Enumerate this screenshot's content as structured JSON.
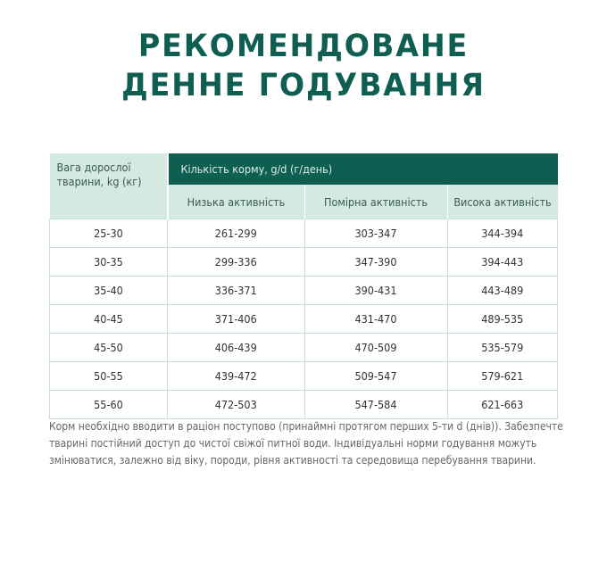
{
  "title": {
    "line1": "РЕКОМЕНДОВАНЕ",
    "line2": "ДЕННЕ ГОДУВАННЯ"
  },
  "table": {
    "weight_header": "Вага дорослої тварини, kg (кг)",
    "group_header": "Кількість корму, g/d (г/день)",
    "columns": [
      "Низька активність",
      "Помірна активність",
      "Висока активність"
    ],
    "rows": [
      [
        "25-30",
        "261-299",
        "303-347",
        "344-394"
      ],
      [
        "30-35",
        "299-336",
        "347-390",
        "394-443"
      ],
      [
        "35-40",
        "336-371",
        "390-431",
        "443-489"
      ],
      [
        "40-45",
        "371-406",
        "431-470",
        "489-535"
      ],
      [
        "45-50",
        "406-439",
        "470-509",
        "535-579"
      ],
      [
        "50-55",
        "439-472",
        "509-547",
        "579-621"
      ],
      [
        "55-60",
        "472-503",
        "547-584",
        "621-663"
      ]
    ]
  },
  "note": "Корм необхідно вводити в раціон поступово (принаймні протягом перших 5-ти d (днів)). Забезпечте тварині постійний доступ до чистої свіжої питної води. Індивідуальні норми годування можуть змінюватися, залежно від віку, породи, рівня активності та середовища перебування тварини.",
  "colors": {
    "brand": "#0f5e52",
    "header_light": "#d5e9e3"
  }
}
